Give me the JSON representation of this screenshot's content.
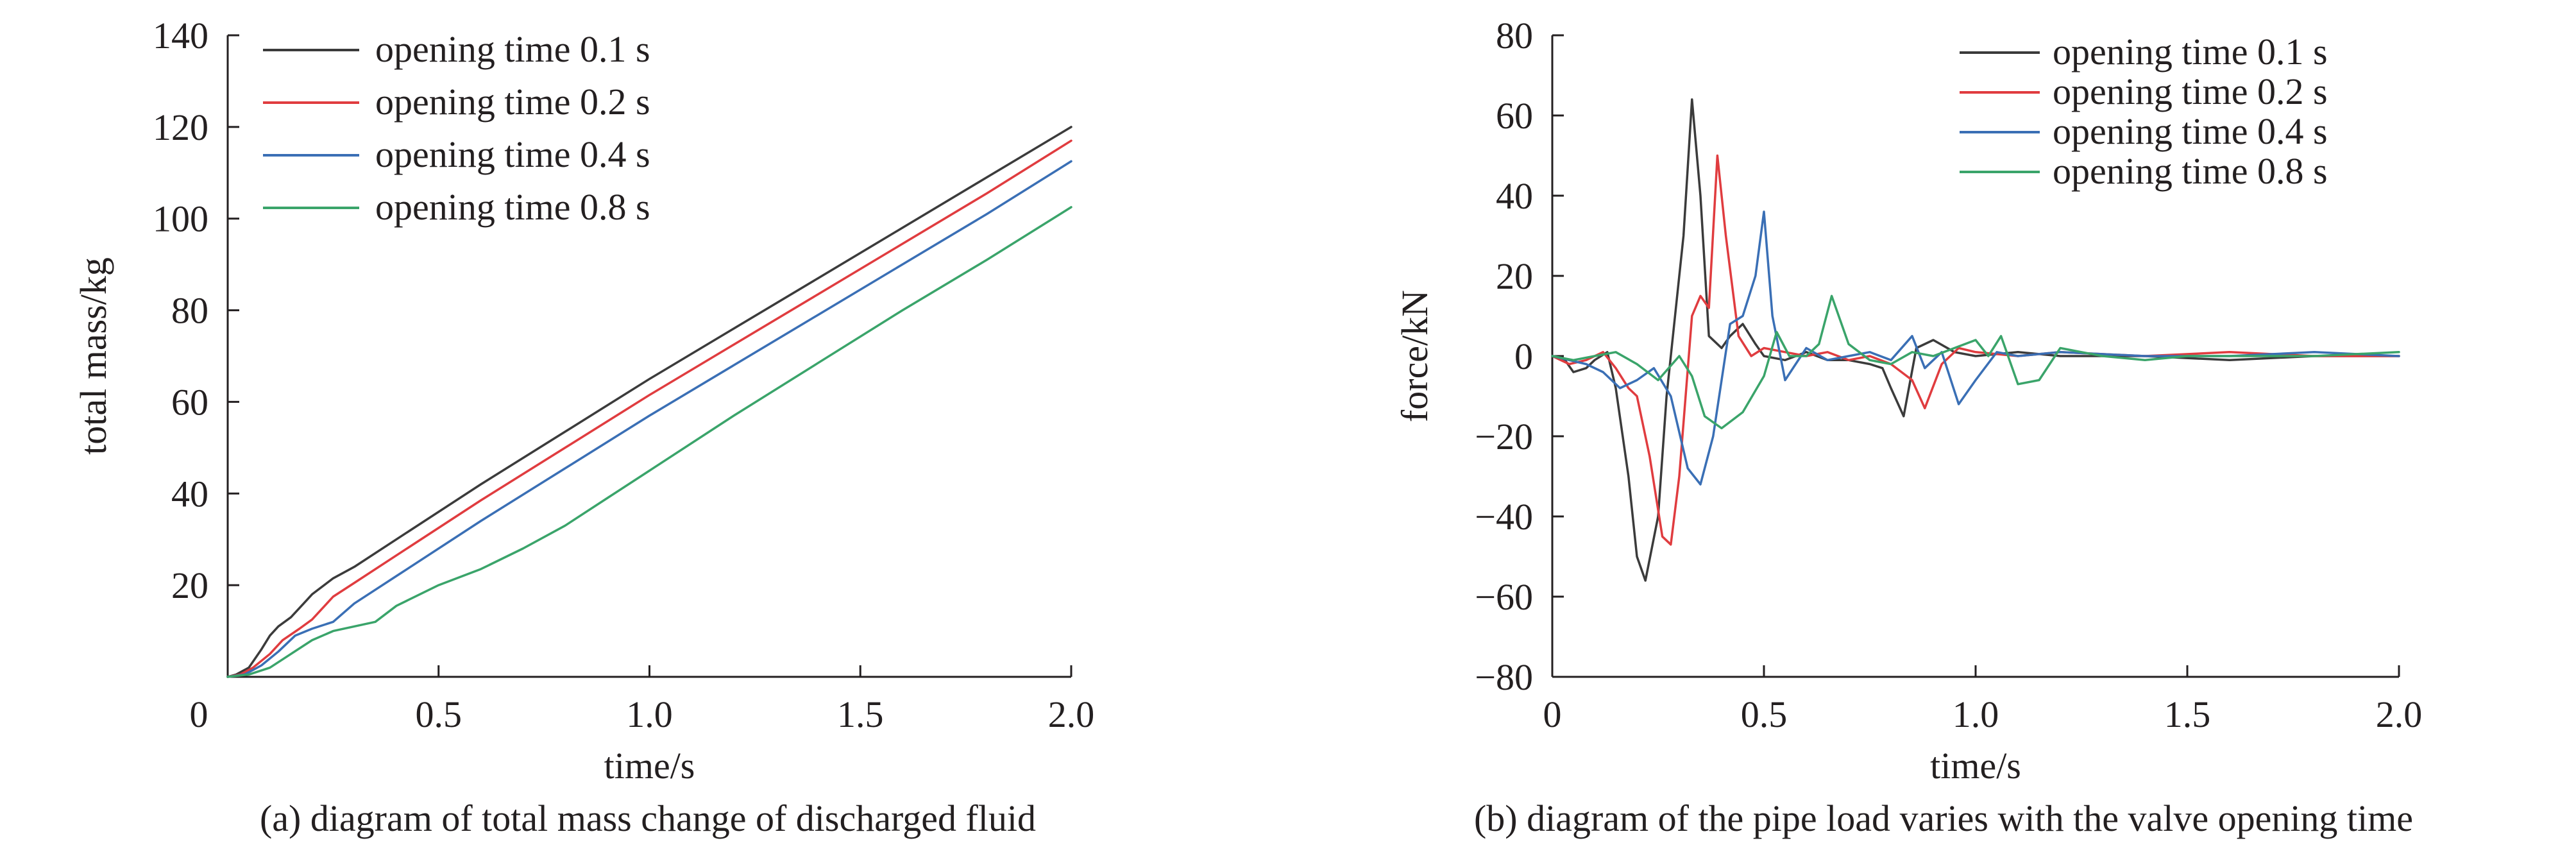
{
  "chart_data": [
    {
      "type": "line",
      "title": "",
      "caption": "(a) diagram of total mass change of discharged fluid",
      "xlabel": "time/s",
      "ylabel": "total mass/kg",
      "xlim": [
        0,
        2.0
      ],
      "ylim": [
        0,
        140
      ],
      "xticks": [
        0,
        0.5,
        1.0,
        1.5,
        2.0
      ],
      "xtick_labels": [
        "0",
        "0.5",
        "1.0",
        "1.5",
        "2.0"
      ],
      "yticks": [
        20,
        40,
        60,
        80,
        100,
        120,
        140
      ],
      "ytick_labels": [
        "20",
        "40",
        "60",
        "80",
        "100",
        "120",
        "140"
      ],
      "grid": false,
      "legend_position": "top-left",
      "series": [
        {
          "name": "opening time 0.1 s",
          "color": "#3b3b3b",
          "x": [
            0,
            0.02,
            0.05,
            0.08,
            0.1,
            0.12,
            0.15,
            0.18,
            0.2,
            0.25,
            0.3,
            0.4,
            0.6,
            0.8,
            1.0,
            1.2,
            1.4,
            1.6,
            1.8,
            2.0
          ],
          "y": [
            0,
            0.5,
            2,
            6,
            9,
            11,
            13,
            16,
            18,
            21.5,
            24,
            30,
            42,
            53.5,
            65,
            76,
            87,
            98,
            109,
            120
          ]
        },
        {
          "name": "opening time 0.2 s",
          "color": "#e03c3f",
          "x": [
            0,
            0.03,
            0.06,
            0.1,
            0.13,
            0.17,
            0.2,
            0.25,
            0.3,
            0.4,
            0.6,
            0.8,
            1.0,
            1.2,
            1.4,
            1.6,
            1.8,
            2.0
          ],
          "y": [
            0,
            0.5,
            2,
            5,
            8,
            10.5,
            12.5,
            17.5,
            20.5,
            26.5,
            38.5,
            50,
            61.5,
            72.5,
            83.5,
            94.5,
            105.5,
            117
          ]
        },
        {
          "name": "opening time 0.4 s",
          "color": "#3a6fb5",
          "x": [
            0,
            0.04,
            0.08,
            0.12,
            0.16,
            0.2,
            0.25,
            0.3,
            0.35,
            0.4,
            0.6,
            0.8,
            1.0,
            1.2,
            1.4,
            1.6,
            1.8,
            2.0
          ],
          "y": [
            0,
            0.5,
            2.5,
            5.5,
            9,
            10.5,
            12,
            16,
            19,
            22,
            34,
            45.5,
            57,
            68,
            79,
            90,
            101,
            112.5
          ]
        },
        {
          "name": "opening time 0.8 s",
          "color": "#3aa46a",
          "x": [
            0,
            0.05,
            0.1,
            0.15,
            0.2,
            0.25,
            0.3,
            0.35,
            0.4,
            0.5,
            0.6,
            0.7,
            0.8,
            0.9,
            1.0,
            1.2,
            1.4,
            1.6,
            1.8,
            2.0
          ],
          "y": [
            0,
            0.5,
            2,
            5,
            8,
            10,
            11,
            12,
            15.5,
            20,
            23.5,
            28,
            33,
            39,
            45,
            57,
            68.5,
            80,
            91,
            102.5
          ]
        }
      ]
    },
    {
      "type": "line",
      "title": "",
      "caption": "(b) diagram of the pipe load varies with the valve opening time",
      "xlabel": "time/s",
      "ylabel": "force/kN",
      "xlim": [
        0,
        2.0
      ],
      "ylim": [
        -80,
        80
      ],
      "xticks": [
        0,
        0.5,
        1.0,
        1.5,
        2.0
      ],
      "xtick_labels": [
        "0",
        "0.5",
        "1.0",
        "1.5",
        "2.0"
      ],
      "yticks": [
        -80,
        -60,
        -40,
        -20,
        0,
        20,
        40,
        60,
        80
      ],
      "ytick_labels": [
        "−80",
        "−60",
        "−40",
        "−20",
        "0",
        "20",
        "40",
        "60",
        "80"
      ],
      "grid": false,
      "legend_position": "top-right",
      "series": [
        {
          "name": "opening time 0.1 s",
          "color": "#3b3b3b",
          "x": [
            0,
            0.03,
            0.05,
            0.08,
            0.1,
            0.13,
            0.15,
            0.18,
            0.2,
            0.22,
            0.25,
            0.27,
            0.29,
            0.31,
            0.33,
            0.35,
            0.37,
            0.4,
            0.42,
            0.45,
            0.48,
            0.5,
            0.55,
            0.6,
            0.65,
            0.7,
            0.75,
            0.78,
            0.8,
            0.83,
            0.86,
            0.9,
            0.95,
            1.0,
            1.1,
            1.2,
            1.4,
            1.6,
            1.8,
            2.0
          ],
          "y": [
            0,
            -1,
            -4,
            -3,
            -1,
            1,
            -8,
            -30,
            -50,
            -56,
            -40,
            -10,
            10,
            30,
            64,
            40,
            5,
            2,
            5,
            8,
            3,
            0,
            -1,
            1,
            -1,
            -1,
            -2,
            -3,
            -8,
            -15,
            2,
            4,
            1,
            0,
            1,
            0,
            0,
            -1,
            0,
            0
          ]
        },
        {
          "name": "opening time 0.2 s",
          "color": "#e03c3f",
          "x": [
            0,
            0.04,
            0.08,
            0.12,
            0.15,
            0.18,
            0.2,
            0.23,
            0.26,
            0.28,
            0.3,
            0.33,
            0.35,
            0.37,
            0.39,
            0.41,
            0.44,
            0.47,
            0.5,
            0.55,
            0.6,
            0.65,
            0.7,
            0.75,
            0.8,
            0.85,
            0.88,
            0.92,
            0.96,
            1.0,
            1.1,
            1.2,
            1.4,
            1.6,
            1.8,
            2.0
          ],
          "y": [
            0,
            -2,
            -1,
            1,
            -3,
            -8,
            -10,
            -25,
            -45,
            -47,
            -30,
            10,
            15,
            12,
            50,
            30,
            5,
            0,
            2,
            1,
            0,
            1,
            -1,
            0,
            -2,
            -6,
            -13,
            -2,
            2,
            1,
            0,
            1,
            0,
            1,
            0,
            0
          ]
        },
        {
          "name": "opening time 0.4 s",
          "color": "#3a6fb5",
          "x": [
            0,
            0.04,
            0.08,
            0.12,
            0.16,
            0.2,
            0.24,
            0.28,
            0.32,
            0.35,
            0.38,
            0.42,
            0.45,
            0.48,
            0.5,
            0.52,
            0.55,
            0.6,
            0.65,
            0.7,
            0.75,
            0.8,
            0.85,
            0.88,
            0.92,
            0.96,
            1.0,
            1.05,
            1.1,
            1.2,
            1.4,
            1.6,
            1.8,
            2.0
          ],
          "y": [
            0,
            -1,
            -2,
            -4,
            -8,
            -6,
            -3,
            -10,
            -28,
            -32,
            -20,
            8,
            10,
            20,
            36,
            10,
            -6,
            2,
            -1,
            0,
            1,
            -1,
            5,
            -3,
            1,
            -12,
            -6,
            1,
            0,
            1,
            0,
            0,
            1,
            0
          ]
        },
        {
          "name": "opening time 0.8 s",
          "color": "#3aa46a",
          "x": [
            0,
            0.05,
            0.1,
            0.15,
            0.2,
            0.25,
            0.3,
            0.33,
            0.36,
            0.4,
            0.45,
            0.5,
            0.53,
            0.56,
            0.6,
            0.63,
            0.66,
            0.7,
            0.75,
            0.8,
            0.85,
            0.9,
            0.95,
            1.0,
            1.03,
            1.06,
            1.1,
            1.15,
            1.2,
            1.25,
            1.3,
            1.4,
            1.5,
            1.6,
            1.8,
            2.0
          ],
          "y": [
            0,
            -1,
            0,
            1,
            -2,
            -6,
            0,
            -5,
            -15,
            -18,
            -14,
            -5,
            6,
            0,
            0,
            3,
            15,
            3,
            -1,
            -2,
            1,
            0,
            2,
            4,
            0,
            5,
            -7,
            -6,
            2,
            1,
            0,
            -1,
            0,
            0,
            0,
            1
          ]
        }
      ]
    }
  ]
}
